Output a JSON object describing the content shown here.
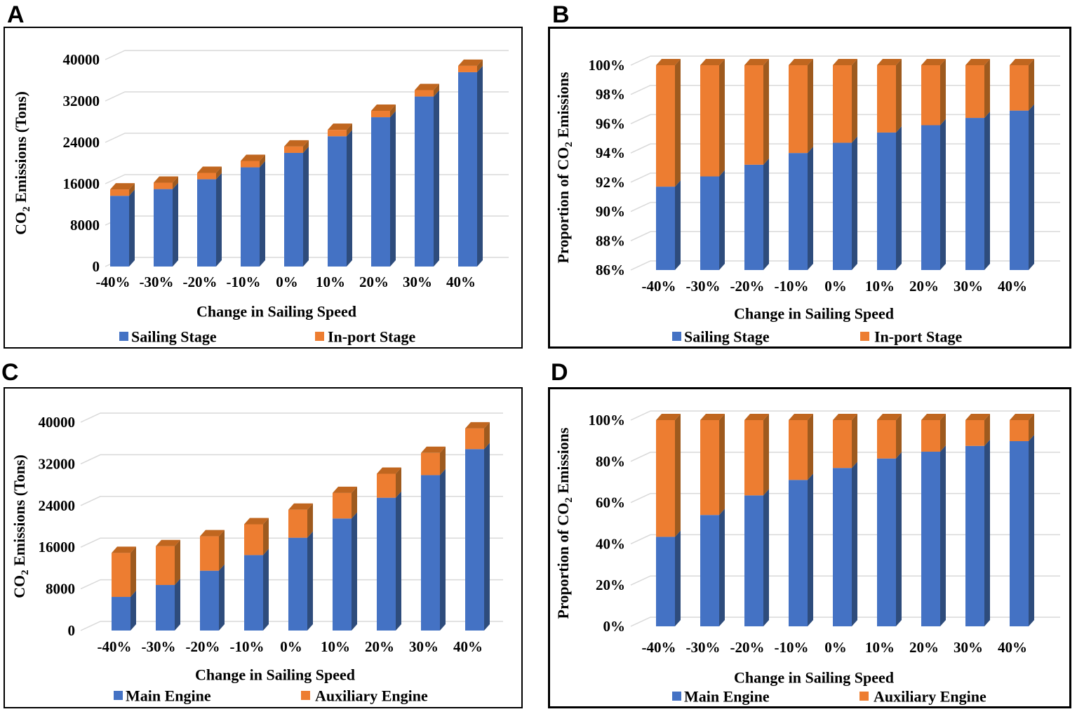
{
  "colors": {
    "series1_front": "#4472C4",
    "series1_side": "#2E4C7C",
    "series1_top": "#3A5E9E",
    "series2_front": "#ED7D31",
    "series2_side": "#9E5A1E",
    "series2_top": "#C0661F",
    "gridline": "#D9D9D9",
    "border": "#000000",
    "background": "#FFFFFF"
  },
  "panels": [
    {
      "letter": "A"
    },
    {
      "letter": "B"
    },
    {
      "letter": "C"
    },
    {
      "letter": "D"
    }
  ],
  "chart_data": [
    {
      "panel": "A",
      "type": "bar",
      "stacked": true,
      "x_axis_title": "Change in Sailing Speed",
      "y_axis_title": "CO2 Emissions (Tons)",
      "categories": [
        "-40%",
        "-30%",
        "-20%",
        "-10%",
        "0%",
        "10%",
        "20%",
        "30%",
        "40%"
      ],
      "y_ticks": [
        "0",
        "8000",
        "16000",
        "24000",
        "32000",
        "40000"
      ],
      "ylim": [
        0,
        40000
      ],
      "ytick_step": 8000,
      "grid": true,
      "legend_position": "bottom",
      "legend": [
        "Sailing Stage",
        "In-port Stage"
      ],
      "series": [
        {
          "name": "Sailing Stage",
          "values": [
            13670,
            14970,
            16870,
            19180,
            21970,
            25190,
            28870,
            32870,
            37570
          ]
        },
        {
          "name": "In-port Stage",
          "values": [
            1230,
            1230,
            1230,
            1230,
            1230,
            1230,
            1230,
            1230,
            1230
          ]
        }
      ]
    },
    {
      "panel": "B",
      "type": "bar",
      "stacked": true,
      "x_axis_title": "Change in Sailing Speed",
      "y_axis_title": "Proportion of CO2 Emissions",
      "categories": [
        "-40%",
        "-30%",
        "-20%",
        "-10%",
        "0%",
        "10%",
        "20%",
        "30%",
        "40%"
      ],
      "y_ticks": [
        "86%",
        "88%",
        "90%",
        "92%",
        "94%",
        "96%",
        "98%",
        "100%"
      ],
      "ylim": [
        86,
        100
      ],
      "ytick_step": 2,
      "grid": true,
      "legend_position": "bottom",
      "legend": [
        "Sailing Stage",
        "In-port Stage"
      ],
      "series": [
        {
          "name": "Sailing Stage",
          "values": [
            91.7,
            92.4,
            93.2,
            94.0,
            94.7,
            95.4,
            95.9,
            96.4,
            96.9
          ]
        },
        {
          "name": "In-port Stage",
          "values": [
            8.3,
            7.6,
            6.8,
            6.0,
            5.3,
            4.6,
            4.1,
            3.6,
            3.1
          ]
        }
      ]
    },
    {
      "panel": "C",
      "type": "bar",
      "stacked": true,
      "x_axis_title": "Change in Sailing Speed",
      "y_axis_title": "CO2 Emissions (Tons)",
      "categories": [
        "-40%",
        "-30%",
        "-20%",
        "-10%",
        "0%",
        "10%",
        "20%",
        "30%",
        "40%"
      ],
      "y_ticks": [
        "0",
        "8000",
        "16000",
        "24000",
        "32000",
        "40000"
      ],
      "ylim": [
        0,
        40000
      ],
      "ytick_step": 8000,
      "grid": true,
      "legend_position": "bottom",
      "legend": [
        "Main Engine",
        "Auxiliary Engine"
      ],
      "series": [
        {
          "name": "Main Engine",
          "values": [
            6460,
            8750,
            11490,
            14490,
            17820,
            21510,
            25500,
            29840,
            34840
          ]
        },
        {
          "name": "Auxiliary Engine",
          "values": [
            8440,
            7450,
            6610,
            5920,
            5380,
            4910,
            4600,
            4260,
            3960
          ]
        }
      ]
    },
    {
      "panel": "D",
      "type": "bar",
      "stacked": true,
      "x_axis_title": "Change in Sailing Speed",
      "y_axis_title": "Proportion of CO2 Emissions",
      "categories": [
        "-40%",
        "-30%",
        "-20%",
        "-10%",
        "0%",
        "10%",
        "20%",
        "30%",
        "40%"
      ],
      "y_ticks": [
        "0%",
        "20%",
        "40%",
        "60%",
        "80%",
        "100%"
      ],
      "ylim": [
        0,
        100
      ],
      "ytick_step": 20,
      "grid": true,
      "legend_position": "bottom",
      "legend": [
        "Main Engine",
        "Auxiliary Engine"
      ],
      "series": [
        {
          "name": "Main Engine",
          "values": [
            43.4,
            54.0,
            63.5,
            71.0,
            76.8,
            81.4,
            84.7,
            87.5,
            89.8
          ]
        },
        {
          "name": "Auxiliary Engine",
          "values": [
            56.6,
            46.0,
            36.5,
            29.0,
            23.2,
            18.6,
            15.3,
            12.5,
            10.2
          ]
        }
      ]
    }
  ]
}
